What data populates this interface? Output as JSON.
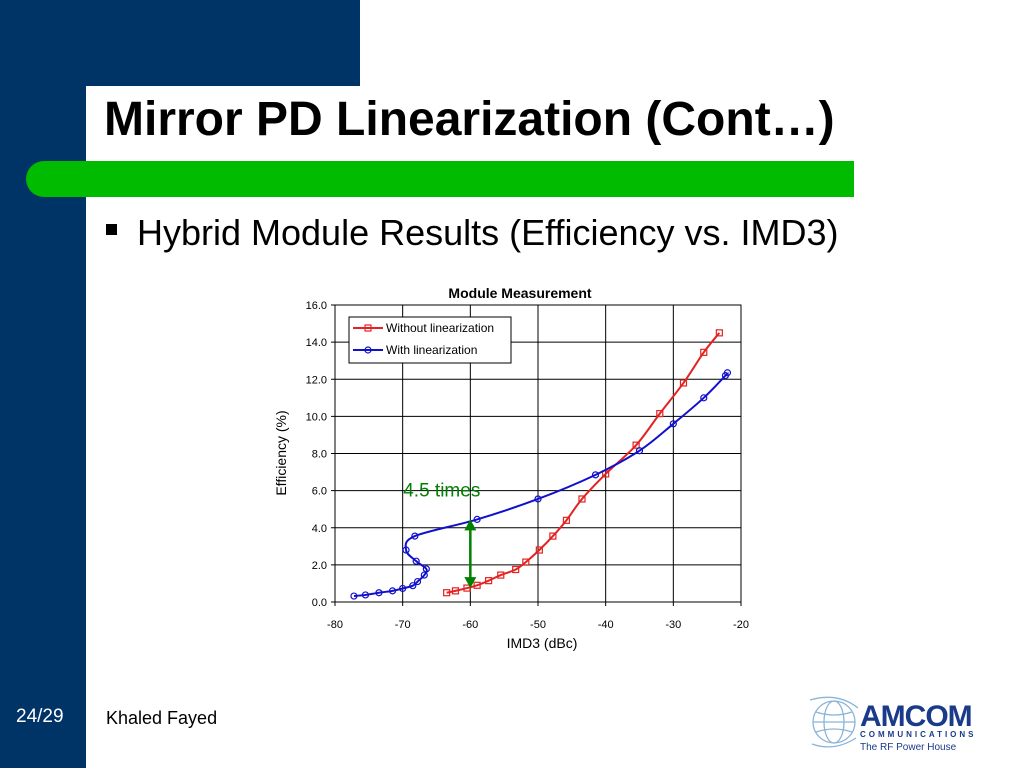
{
  "slide": {
    "title": "Mirror PD Linearization (Cont…)",
    "bullet": "Hybrid Module Results (Efficiency vs. IMD3)",
    "page_number": "24/29",
    "author": "Khaled Fayed",
    "colors": {
      "sidebar": "#003366",
      "green_bar": "#00bb00",
      "annotation": "#008000"
    }
  },
  "logo": {
    "brand": "AMCOM",
    "subtitle": "COMMUNICATIONS",
    "tagline": "The RF Power House",
    "icon": "globe-icon",
    "color": "#1a3a8a"
  },
  "chart_data": {
    "type": "line",
    "title": "Module Measurement",
    "xlabel": "IMD3 (dBc)",
    "ylabel": "Efficiency (%)",
    "xlim": [
      -80,
      -20
    ],
    "ylim": [
      0,
      16
    ],
    "xticks": [
      "-80",
      "-70",
      "-60",
      "-50",
      "-40",
      "-30",
      "-20"
    ],
    "yticks": [
      "0.0",
      "2.0",
      "4.0",
      "6.0",
      "8.0",
      "10.0",
      "12.0",
      "14.0",
      "16.0"
    ],
    "grid": true,
    "legend_position": "top-left",
    "series": [
      {
        "name": "Without linearization",
        "color": "#e32222",
        "marker": "square",
        "points": [
          [
            -63.5,
            0.5
          ],
          [
            -62.2,
            0.6
          ],
          [
            -60.5,
            0.75
          ],
          [
            -59,
            0.9
          ],
          [
            -57.3,
            1.15
          ],
          [
            -55.5,
            1.45
          ],
          [
            -53.3,
            1.75
          ],
          [
            -51.8,
            2.15
          ],
          [
            -49.8,
            2.8
          ],
          [
            -47.8,
            3.55
          ],
          [
            -45.8,
            4.4
          ],
          [
            -43.5,
            5.55
          ],
          [
            -40,
            6.9
          ],
          [
            -35.5,
            8.45
          ],
          [
            -32,
            10.15
          ],
          [
            -28.5,
            11.8
          ],
          [
            -25.5,
            13.45
          ],
          [
            -23.2,
            14.5
          ]
        ]
      },
      {
        "name": "With linearization",
        "color": "#1111cc",
        "marker": "circle",
        "points": [
          [
            -77.2,
            0.32
          ],
          [
            -75.5,
            0.38
          ],
          [
            -73.5,
            0.5
          ],
          [
            -71.5,
            0.6
          ],
          [
            -70,
            0.73
          ],
          [
            -68.5,
            0.88
          ],
          [
            -67.8,
            1.1
          ],
          [
            -66.8,
            1.45
          ],
          [
            -66.5,
            1.78
          ],
          [
            -68,
            2.2
          ],
          [
            -69.5,
            2.8
          ],
          [
            -68.2,
            3.55
          ],
          [
            -59,
            4.45
          ],
          [
            -50,
            5.55
          ],
          [
            -41.5,
            6.85
          ],
          [
            -35,
            8.15
          ],
          [
            -30,
            9.6
          ],
          [
            -25.5,
            11
          ],
          [
            -22.3,
            12.2
          ],
          [
            -22,
            12.35
          ]
        ]
      }
    ],
    "annotation": {
      "text": "4.5 times",
      "arrow_x": -60,
      "arrow_from": 0.75,
      "arrow_to": 4.45
    }
  }
}
